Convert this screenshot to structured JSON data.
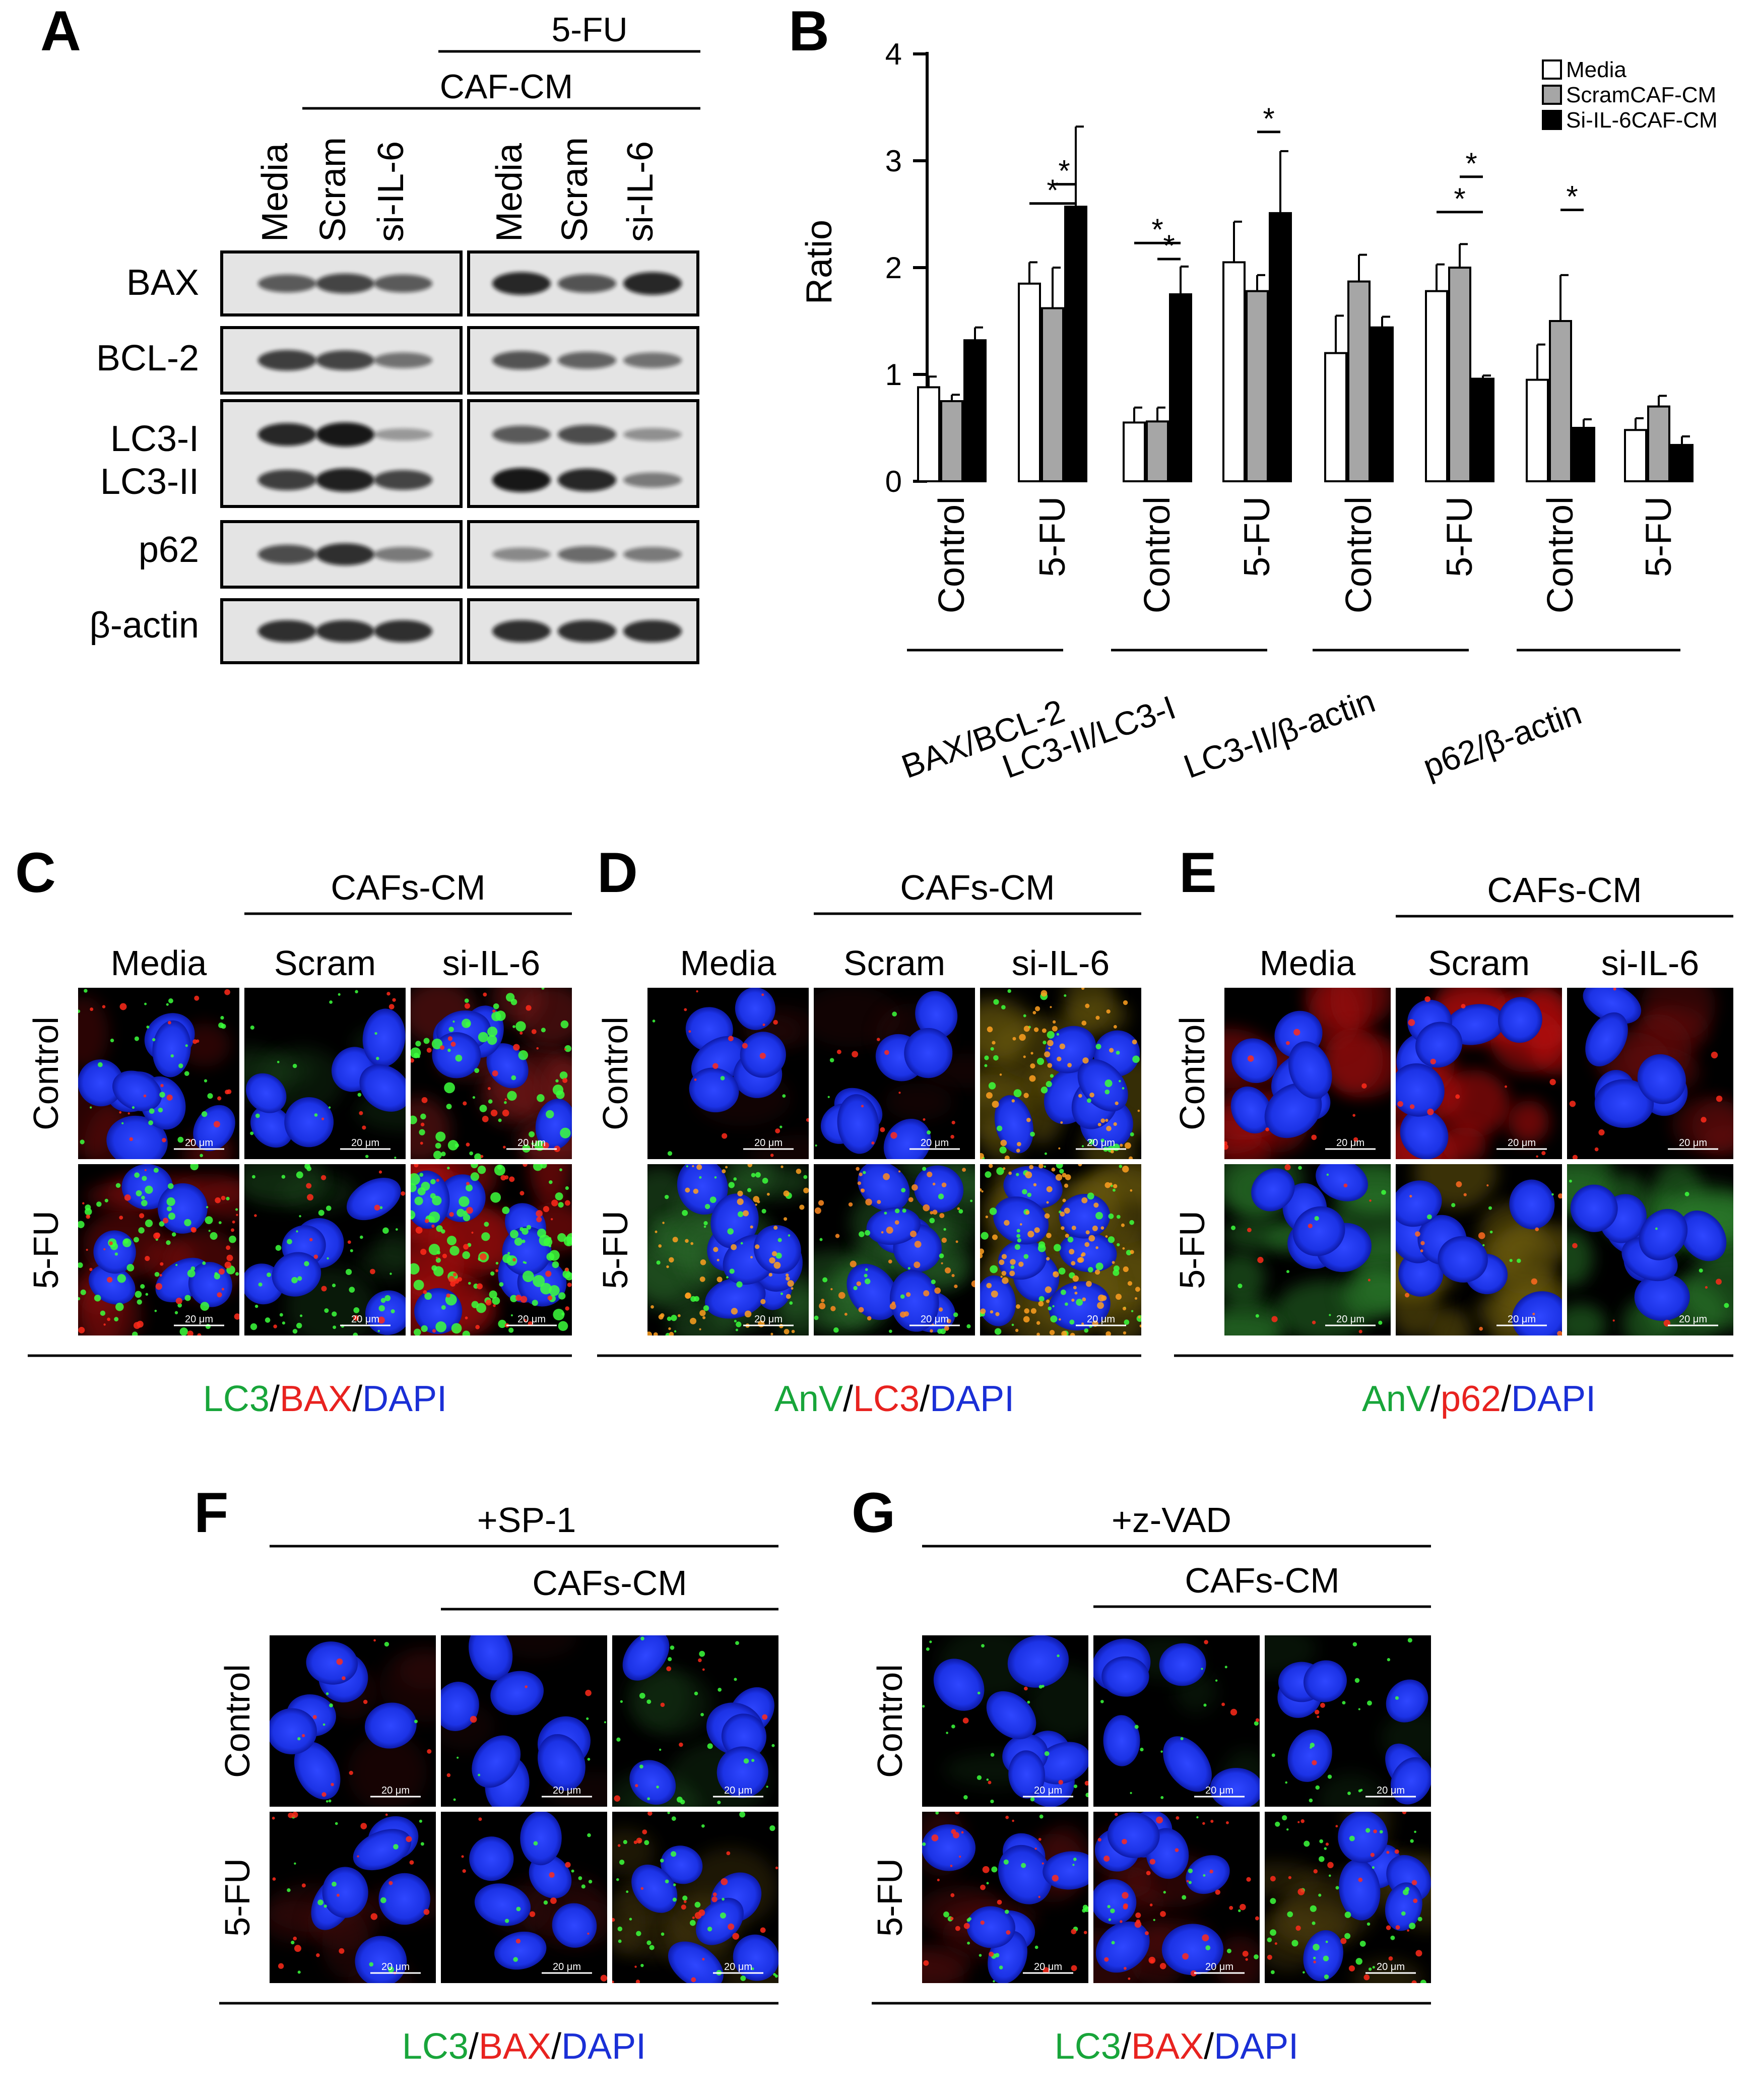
{
  "panel_labels": {
    "A": "A",
    "B": "B",
    "C": "C",
    "D": "D",
    "E": "E",
    "F": "F",
    "G": "G"
  },
  "blot": {
    "header_5fu": "5-FU",
    "header_cafcm": "CAF-CM",
    "lanes": [
      "Media",
      "Scram",
      "si-IL-6",
      "Media",
      "Scram",
      "si-IL-6"
    ],
    "proteins": [
      "BAX",
      "BCL-2",
      "LC3-I",
      "LC3-II",
      "p62",
      "β-actin"
    ]
  },
  "chart_data": {
    "type": "bar",
    "ylabel": "Ratio",
    "ylim": [
      0,
      4
    ],
    "yticks": [
      "0",
      "1",
      "2",
      "3",
      "4"
    ],
    "legend_placement": "top-right",
    "grid": false,
    "colors": {
      "Media": "#ffffff",
      "ScramCAF-CM": "#a6a6a6",
      "Si-IL-6CAF-CM": "#000000"
    },
    "series": [
      {
        "name": "Media",
        "values": [
          0.88,
          1.85,
          0.55,
          2.05,
          1.2,
          1.78,
          0.95,
          0.48
        ]
      },
      {
        "name": "ScramCAF-CM",
        "values": [
          0.75,
          1.62,
          0.56,
          1.78,
          1.87,
          2.0,
          1.5,
          0.7
        ]
      },
      {
        "name": "Si-IL-6CAF-CM",
        "values": [
          1.32,
          2.57,
          1.75,
          2.51,
          1.44,
          0.96,
          0.5,
          0.34
        ]
      }
    ],
    "errors": [
      [
        0.1,
        0.2,
        0.14,
        0.38,
        0.35,
        0.25,
        0.33,
        0.11
      ],
      [
        0.06,
        0.38,
        0.13,
        0.15,
        0.25,
        0.22,
        0.43,
        0.1
      ],
      [
        0.12,
        0.75,
        0.26,
        0.58,
        0.1,
        0.03,
        0.08,
        0.08
      ]
    ],
    "x_labels": [
      "Control",
      "5-FU",
      "Control",
      "5-FU",
      "Control",
      "5-FU",
      "Control",
      "5-FU"
    ],
    "groups": [
      "BAX/BCL-2",
      "LC3-II/LC3-I",
      "LC3-II/β-actin",
      "p62/β-actin"
    ],
    "significance": "*"
  },
  "micro_panels": {
    "caf_header": "CAFs-CM",
    "columns": [
      "Media",
      "Scram",
      "si-IL-6"
    ],
    "rows": [
      "Control",
      "5-FU"
    ],
    "scale_bar": "20 μm",
    "sp1_header": "+SP-1",
    "zvad_header": "+z-VAD"
  },
  "stains": {
    "C": [
      {
        "text": "LC3",
        "color": "#18a53a"
      },
      {
        "text": "/",
        "color": "#000000"
      },
      {
        "text": "BAX",
        "color": "#e8221f"
      },
      {
        "text": "/",
        "color": "#000000"
      },
      {
        "text": "DAPI",
        "color": "#1a2fd6"
      }
    ],
    "D": [
      {
        "text": "AnV",
        "color": "#18a53a"
      },
      {
        "text": "/",
        "color": "#000000"
      },
      {
        "text": "LC3",
        "color": "#e8221f"
      },
      {
        "text": "/",
        "color": "#000000"
      },
      {
        "text": "DAPI",
        "color": "#1a2fd6"
      }
    ],
    "E": [
      {
        "text": "AnV",
        "color": "#18a53a"
      },
      {
        "text": "/",
        "color": "#000000"
      },
      {
        "text": "p62",
        "color": "#e8221f"
      },
      {
        "text": "/",
        "color": "#000000"
      },
      {
        "text": "DAPI",
        "color": "#1a2fd6"
      }
    ],
    "F": [
      {
        "text": "LC3",
        "color": "#18a53a"
      },
      {
        "text": "/",
        "color": "#000000"
      },
      {
        "text": "BAX",
        "color": "#e8221f"
      },
      {
        "text": "/",
        "color": "#000000"
      },
      {
        "text": "DAPI",
        "color": "#1a2fd6"
      }
    ],
    "G": [
      {
        "text": "LC3",
        "color": "#18a53a"
      },
      {
        "text": "/",
        "color": "#000000"
      },
      {
        "text": "BAX",
        "color": "#e8221f"
      },
      {
        "text": "/",
        "color": "#000000"
      },
      {
        "text": "DAPI",
        "color": "#1a2fd6"
      }
    ]
  }
}
